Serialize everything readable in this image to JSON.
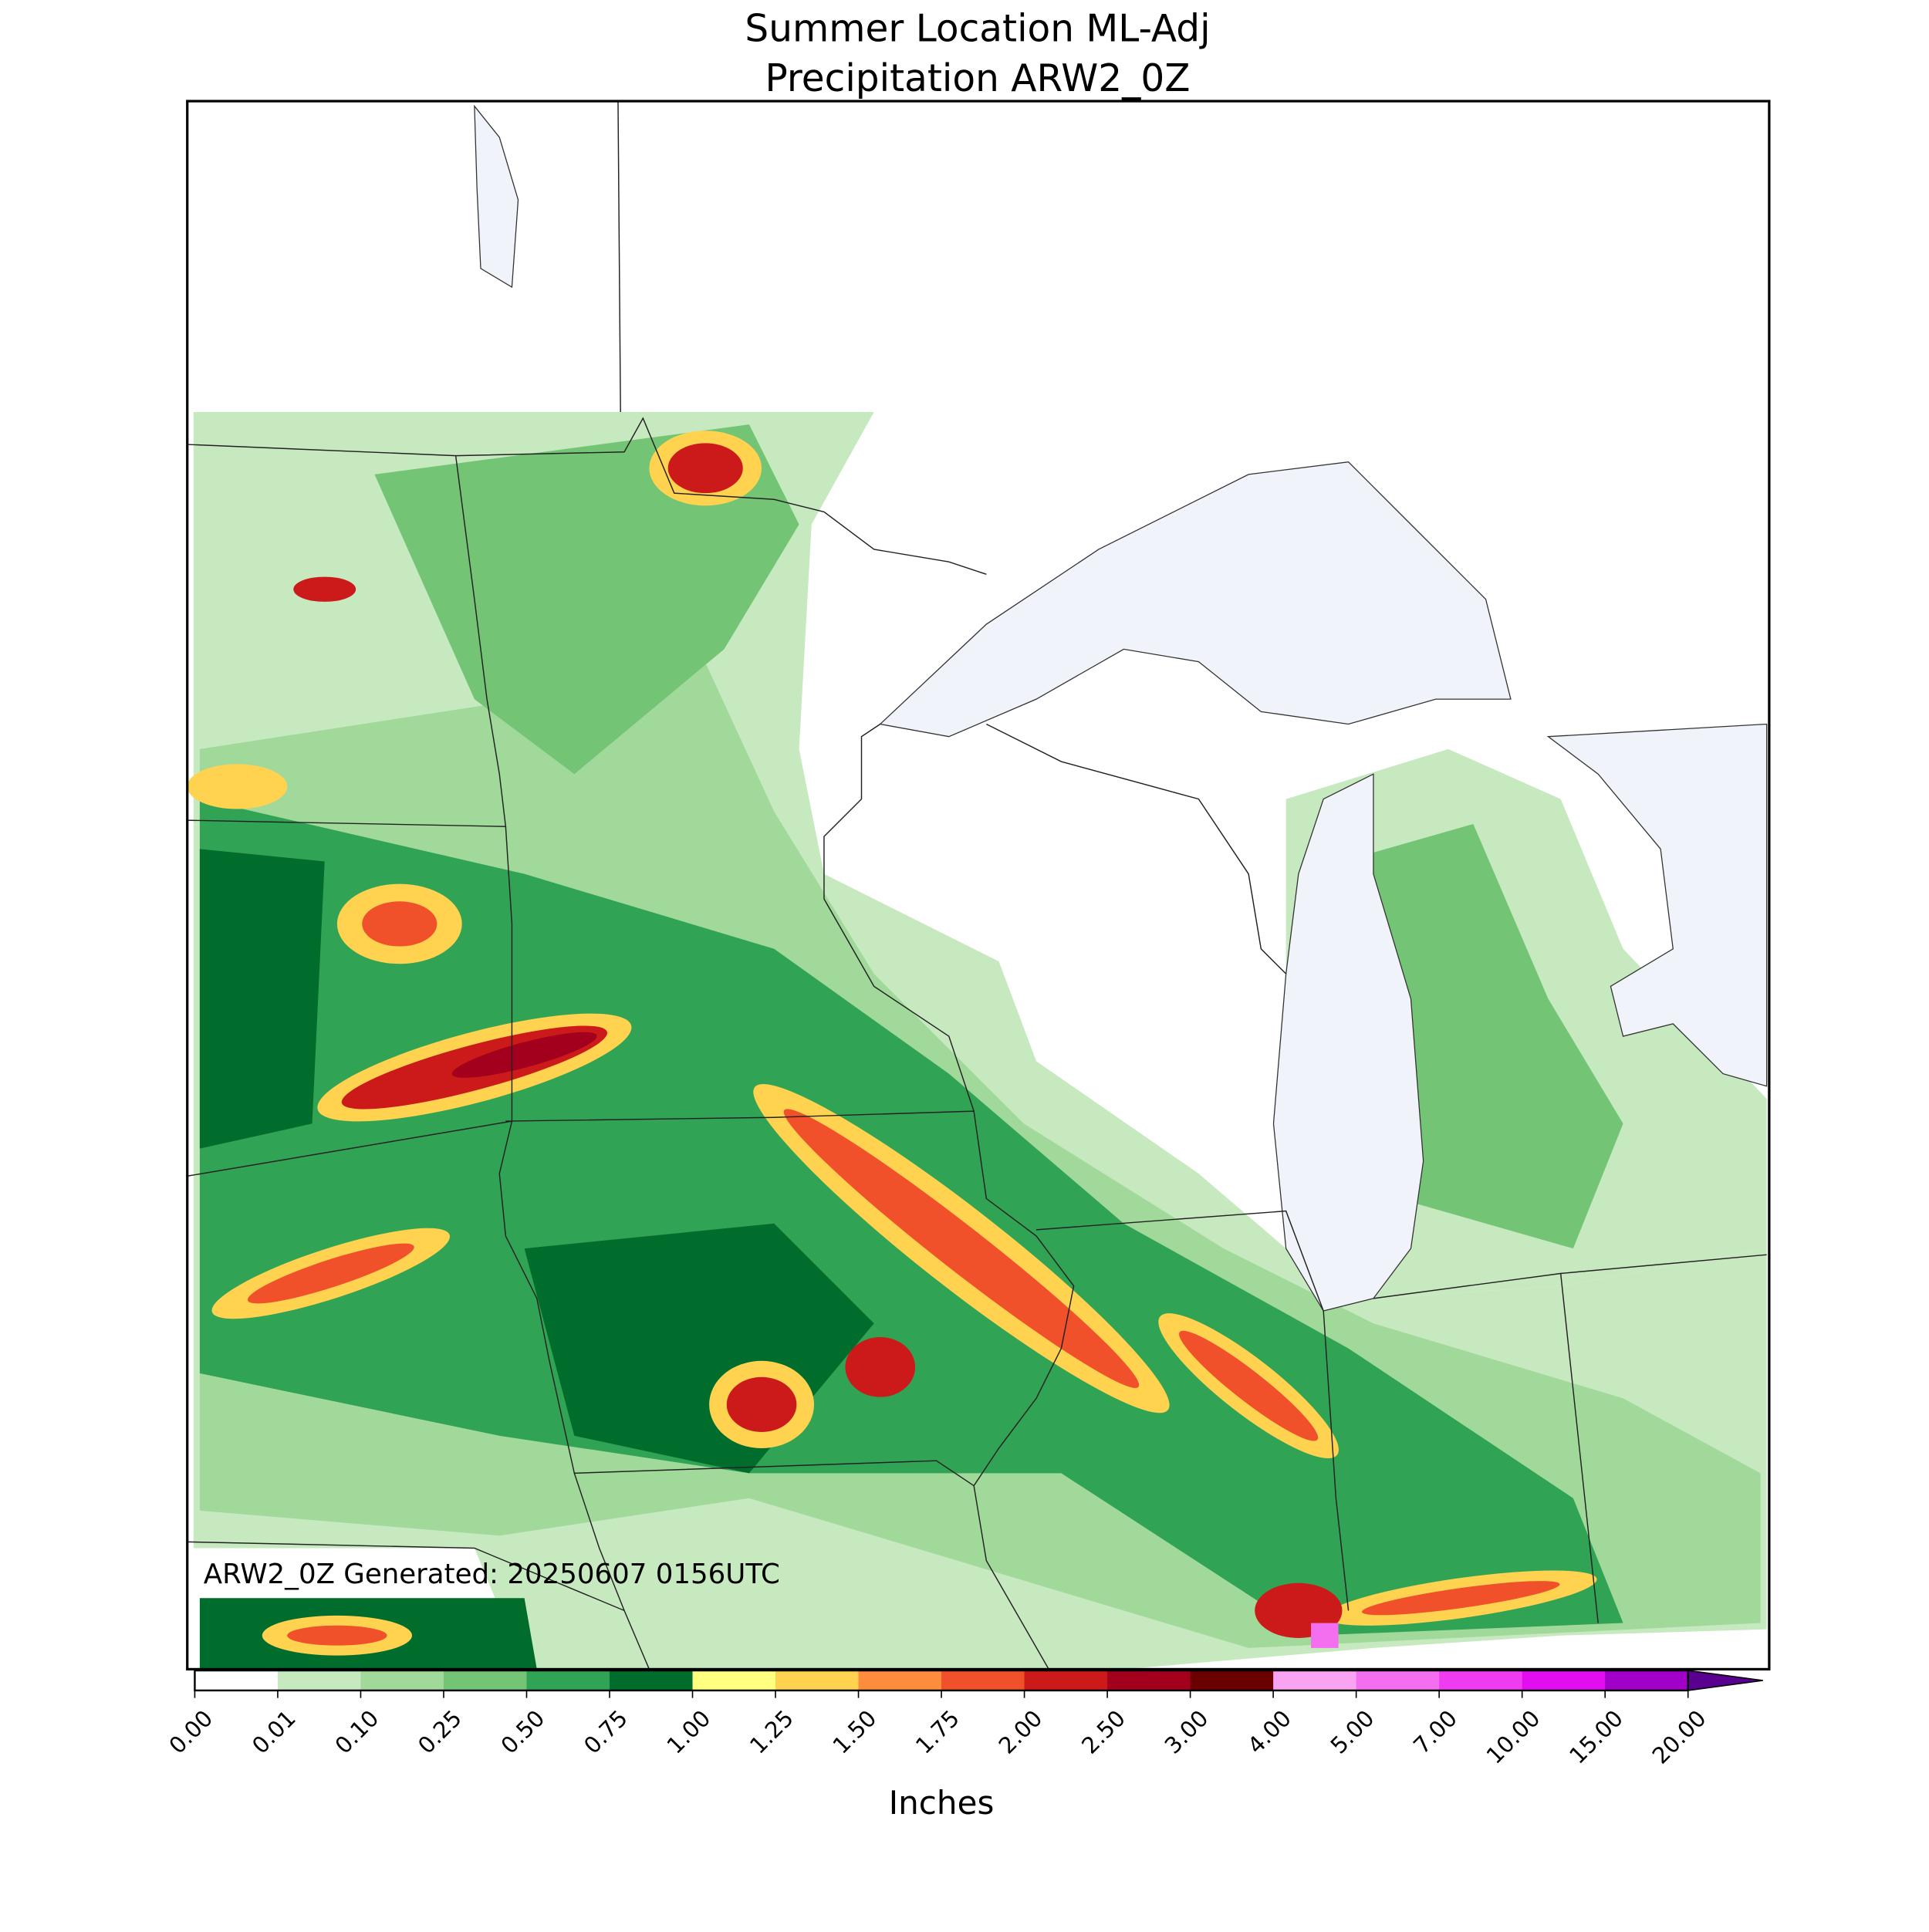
{
  "map": {
    "title_lines": [
      "Summer Location ML-Adj",
      "Precipitation ARW2_0Z"
    ],
    "annotation": "ARW2_0Z Generated: 20250607 0156UTC",
    "colorbar": {
      "label": "Inches",
      "ticks": [
        {
          "value": 0,
          "label": "0.00"
        },
        {
          "value": 0.01,
          "label": "0.01"
        },
        {
          "value": 0.1,
          "label": "0.10"
        },
        {
          "value": 0.25,
          "label": "0.25"
        },
        {
          "value": 0.5,
          "label": "0.50"
        },
        {
          "value": 0.75,
          "label": "0.75"
        },
        {
          "value": 1,
          "label": "1.00"
        },
        {
          "value": 1.25,
          "label": "1.25"
        },
        {
          "value": 1.5,
          "label": "1.50"
        },
        {
          "value": 1.75,
          "label": "1.75"
        },
        {
          "value": 2,
          "label": "2.00"
        },
        {
          "value": 2.5,
          "label": "2.50"
        },
        {
          "value": 3,
          "label": "3.00"
        },
        {
          "value": 4,
          "label": "4.00"
        },
        {
          "value": 5,
          "label": "5.00"
        },
        {
          "value": 7,
          "label": "7.00"
        },
        {
          "value": 10,
          "label": "10.00"
        },
        {
          "value": 15,
          "label": "15.00"
        },
        {
          "value": 20,
          "label": "20.00"
        }
      ],
      "colors": [
        "#ffffff",
        "#c7e9c0",
        "#a1d99b",
        "#74c476",
        "#31a354",
        "#006d2c",
        "#ffff80",
        "#ffd250",
        "#fd8d3c",
        "#f0502a",
        "#cc1a1a",
        "#a3001e",
        "#6b0000",
        "#f9a3f3",
        "#f46ef0",
        "#f03cf0",
        "#e30ef0",
        "#a000c8"
      ],
      "extend_color": "#5a0090"
    }
  }
}
